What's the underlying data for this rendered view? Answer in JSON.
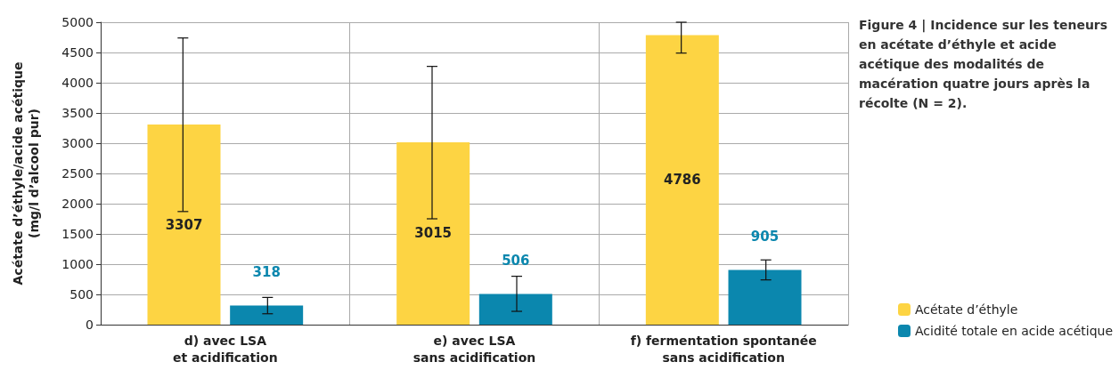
{
  "chart_data": {
    "type": "bar",
    "title": "Figure 4 | Incidence sur les teneurs en acétate d’éthyle et acide acétique des modalités de macération quatre jours après la récolte (N = 2).",
    "ylabel": "Acétate d’éthyle/acide acétique\n(mg/l d’alcool pur)",
    "categories": [
      "d) avec LSA\net acidification",
      "e) avec LSA\nsans acidification",
      "f) fermentation spontanée\nsans acidification"
    ],
    "series": [
      {
        "name": "Acétate d’éthyle",
        "color": "#fdd443",
        "values": [
          3307,
          3015,
          4786
        ],
        "errors": [
          [
            1870,
            4740
          ],
          [
            1750,
            4270
          ],
          [
            4490,
            5000
          ]
        ]
      },
      {
        "name": "Acidité totale en acide acétique",
        "color": "#0b87ae",
        "values": [
          318,
          506,
          905
        ],
        "errors": [
          [
            180,
            450
          ],
          [
            220,
            800
          ],
          [
            740,
            1070
          ]
        ]
      }
    ],
    "ylim": [
      0,
      5000
    ],
    "yticks": [
      0,
      500,
      1000,
      1500,
      2000,
      2500,
      3000,
      3500,
      4000,
      4500,
      5000
    ],
    "grid": true,
    "legend": "right",
    "data_labels": true
  }
}
